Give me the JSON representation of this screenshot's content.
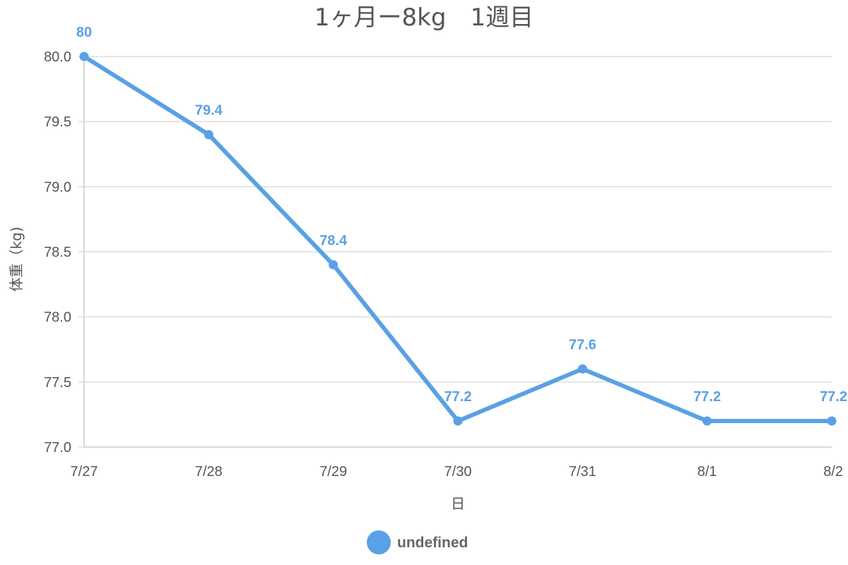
{
  "colors": {
    "series": "#5aa0e6",
    "grid": "#dddddd",
    "axis": "#cccccc",
    "text": "#555555"
  },
  "chart_data": {
    "type": "line",
    "title": "1ヶ月ー8kg　1週目",
    "xlabel": "日",
    "ylabel": "体重（kg)",
    "categories": [
      "7/27",
      "7/28",
      "7/29",
      "7/30",
      "7/31",
      "8/1",
      "8/2"
    ],
    "series": [
      {
        "name": "undefined",
        "values": [
          80,
          79.4,
          78.4,
          77.2,
          77.6,
          77.2,
          77.2
        ]
      }
    ],
    "data_labels": [
      "80",
      "79.4",
      "78.4",
      "77.2",
      "77.6",
      "77.2",
      "77.2"
    ],
    "ylim": [
      77.0,
      80.0
    ],
    "yticks": [
      77.0,
      77.5,
      78.0,
      78.5,
      79.0,
      79.5,
      80.0
    ],
    "ytick_labels": [
      "77.0",
      "77.5",
      "78.0",
      "78.5",
      "79.0",
      "79.5",
      "80.0"
    ],
    "grid": true,
    "legend_position": "bottom-center"
  }
}
